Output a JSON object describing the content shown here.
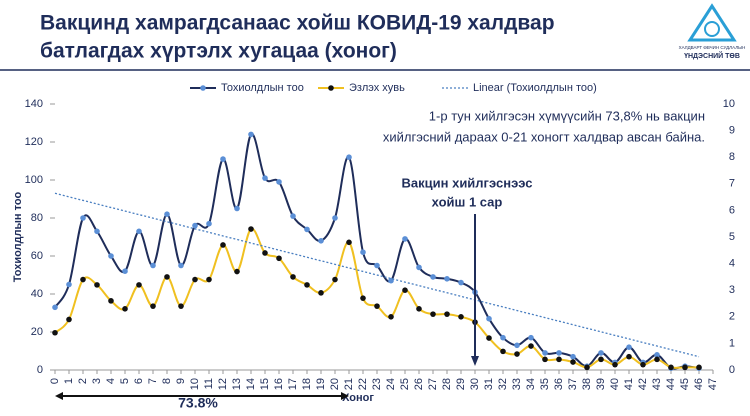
{
  "header": {
    "title_lines": [
      "Вакцинд хамрагдсанаас хойш КОВИД-19 халдвар",
      "батлагдах хүртэлх хугацаа (хоног)"
    ],
    "logo_lines": [
      "ХАЛДВАРТ ӨВЧИН СУДЛАЛЫН",
      "ҮНДЭСНИЙ ТӨВ"
    ]
  },
  "chart_data": {
    "type": "line",
    "x": [
      0,
      1,
      2,
      3,
      4,
      5,
      6,
      7,
      8,
      9,
      10,
      11,
      12,
      13,
      14,
      15,
      16,
      17,
      18,
      19,
      20,
      21,
      22,
      23,
      24,
      25,
      26,
      27,
      28,
      29,
      30,
      31,
      32,
      33,
      34,
      35,
      36,
      37,
      38,
      39,
      40,
      41,
      42,
      43,
      44,
      45,
      46
    ],
    "xlim": [
      0,
      47
    ],
    "xticks": [
      0,
      1,
      2,
      3,
      4,
      5,
      6,
      7,
      8,
      9,
      10,
      11,
      12,
      13,
      14,
      15,
      16,
      17,
      18,
      19,
      20,
      21,
      22,
      23,
      24,
      25,
      26,
      27,
      28,
      29,
      30,
      31,
      32,
      33,
      34,
      35,
      36,
      37,
      38,
      39,
      40,
      41,
      42,
      43,
      44,
      45,
      46,
      47
    ],
    "xlabel": "Хоног",
    "ylabel": "Тохиолдлын тоо",
    "ylim": [
      0,
      140
    ],
    "yticks": [
      0,
      20,
      40,
      60,
      80,
      100,
      120,
      140
    ],
    "y2lim": [
      0,
      10
    ],
    "y2ticks": [
      0,
      1,
      2,
      3,
      4,
      5,
      6,
      7,
      8,
      9,
      10
    ],
    "grid": false,
    "series": [
      {
        "name": "Тохиолдлын тоо",
        "color": "#1f2d5a",
        "marker_color": "#5b8fd6",
        "values": [
          33,
          45,
          80,
          73,
          60,
          52,
          73,
          55,
          82,
          55,
          76,
          77,
          111,
          85,
          124,
          101,
          99,
          81,
          74,
          68,
          80,
          112,
          62,
          55,
          47,
          69,
          54,
          49,
          48,
          46,
          41,
          27,
          17,
          13,
          17,
          9,
          9,
          7,
          2,
          9,
          4,
          12,
          4,
          8,
          1,
          2,
          1
        ]
      },
      {
        "name": "Эзлэх хувь",
        "color": "#f0c020",
        "marker_color": "#111111",
        "axis": "y2",
        "values": [
          1.4,
          1.9,
          3.4,
          3.2,
          2.6,
          2.3,
          3.2,
          2.4,
          3.5,
          2.4,
          3.4,
          3.4,
          4.7,
          3.7,
          5.3,
          4.4,
          4.2,
          3.5,
          3.2,
          2.9,
          3.4,
          4.8,
          2.7,
          2.4,
          2.0,
          3.0,
          2.3,
          2.1,
          2.1,
          2.0,
          1.8,
          1.2,
          0.7,
          0.6,
          0.9,
          0.4,
          0.4,
          0.3,
          0.1,
          0.4,
          0.2,
          0.5,
          0.2,
          0.4,
          0.1,
          0.1,
          0.1
        ]
      },
      {
        "name": "Linear (Тохиолдлын тоо)",
        "color": "#4a7fc1",
        "style": "dotted",
        "x": [
          0,
          46
        ],
        "values": [
          93,
          7
        ]
      }
    ],
    "annotations": [
      {
        "lines": [
          "1-р тун хийлгэсэн хүмүүсийн 73,8% нь вакцин",
          "хийлгэсний дараах 0-21 хоногт халдвар авсан байна."
        ]
      },
      {
        "lines": [
          "Вакцин хийлгэснээс",
          "хойш 1 сар"
        ],
        "x": 30
      },
      {
        "lines": [
          "73.8%"
        ],
        "span": [
          0,
          21
        ]
      }
    ]
  }
}
